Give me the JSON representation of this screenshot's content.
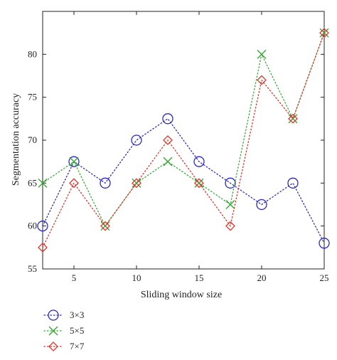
{
  "chart_data": {
    "type": "line",
    "title": "",
    "xlabel": "Sliding window size",
    "ylabel": "Segmentation accuracy",
    "xlim": [
      2.5,
      25
    ],
    "ylim": [
      55,
      85
    ],
    "xticks": [
      5,
      10,
      15,
      20,
      25
    ],
    "yticks": [
      55,
      60,
      65,
      70,
      75,
      80
    ],
    "grid": false,
    "legend_position": "bottom-left, below plot",
    "x": [
      2.5,
      5,
      7.5,
      10,
      12.5,
      15,
      17.5,
      20,
      22.5,
      25
    ],
    "series": [
      {
        "name": "3×3",
        "color": "#2b2bb8",
        "marker": "circle",
        "values": [
          60,
          67.5,
          65,
          70,
          72.5,
          67.5,
          65,
          62.5,
          65,
          58
        ]
      },
      {
        "name": "5×5",
        "color": "#3aa83a",
        "marker": "x",
        "values": [
          65,
          67.5,
          60,
          65,
          67.5,
          65,
          62.5,
          80,
          72.5,
          82.5
        ]
      },
      {
        "name": "7×7",
        "color": "#e0352b",
        "marker": "diamond",
        "values": [
          57.5,
          65,
          60,
          65,
          70,
          65,
          60,
          77,
          72.5,
          82.5
        ]
      }
    ]
  }
}
